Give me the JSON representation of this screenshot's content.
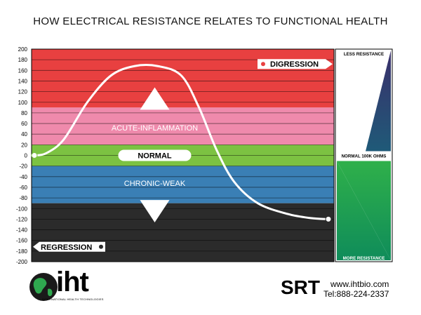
{
  "title": "HOW ELECTRICAL RESISTANCE RELATES TO FUNCTIONAL HEALTH",
  "chart_data": {
    "type": "line",
    "ylim": [
      -200,
      200
    ],
    "yticks": [
      200,
      180,
      160,
      140,
      120,
      100,
      80,
      60,
      40,
      20,
      0,
      -20,
      -40,
      -60,
      -80,
      -100,
      -120,
      -140,
      -160,
      -180,
      -200
    ],
    "bands": [
      {
        "name": "DIGRESSION",
        "from": 90,
        "to": 200,
        "color": "#e84040"
      },
      {
        "name": "ACUTE-INFLAMMATION",
        "from": 20,
        "to": 90,
        "color": "#ef8aac"
      },
      {
        "name": "NORMAL",
        "from": -20,
        "to": 20,
        "color": "#7cc242"
      },
      {
        "name": "CHRONIC-WEAK",
        "from": -90,
        "to": -20,
        "color": "#3a7fb5"
      },
      {
        "name": "REGRESSION",
        "from": -200,
        "to": -90,
        "color": "#2b2b2b"
      }
    ],
    "labels": {
      "digression": "DIGRESSION",
      "acute": "ACUTE-INFLAMMATION",
      "normal": "NORMAL",
      "chronic": "CHRONIC-WEAK",
      "regression": "REGRESSION"
    },
    "curve": {
      "x": [
        0,
        0.04,
        0.1,
        0.18,
        0.26,
        0.34,
        0.42,
        0.5,
        0.56,
        0.62,
        0.68,
        0.76,
        0.86,
        0.94,
        1.0
      ],
      "y": [
        0,
        4,
        30,
        100,
        150,
        168,
        168,
        150,
        90,
        10,
        -50,
        -90,
        -110,
        -118,
        -120
      ]
    },
    "scale": {
      "top": "LESS RESISTANCE",
      "middle": "NORMAL 100K OHMS",
      "bottom": "MORE RESISTANCE",
      "top_color": "#2c3e6e",
      "bottom_color": "#17a050"
    }
  },
  "footer": {
    "logo": "iht",
    "logo_sub": "INTERNATIONAL HEALTH TECHNOLOGIES",
    "brand": "SRT",
    "url": "www.ihtbio.com",
    "tel": "Tel:888-224-2337"
  }
}
